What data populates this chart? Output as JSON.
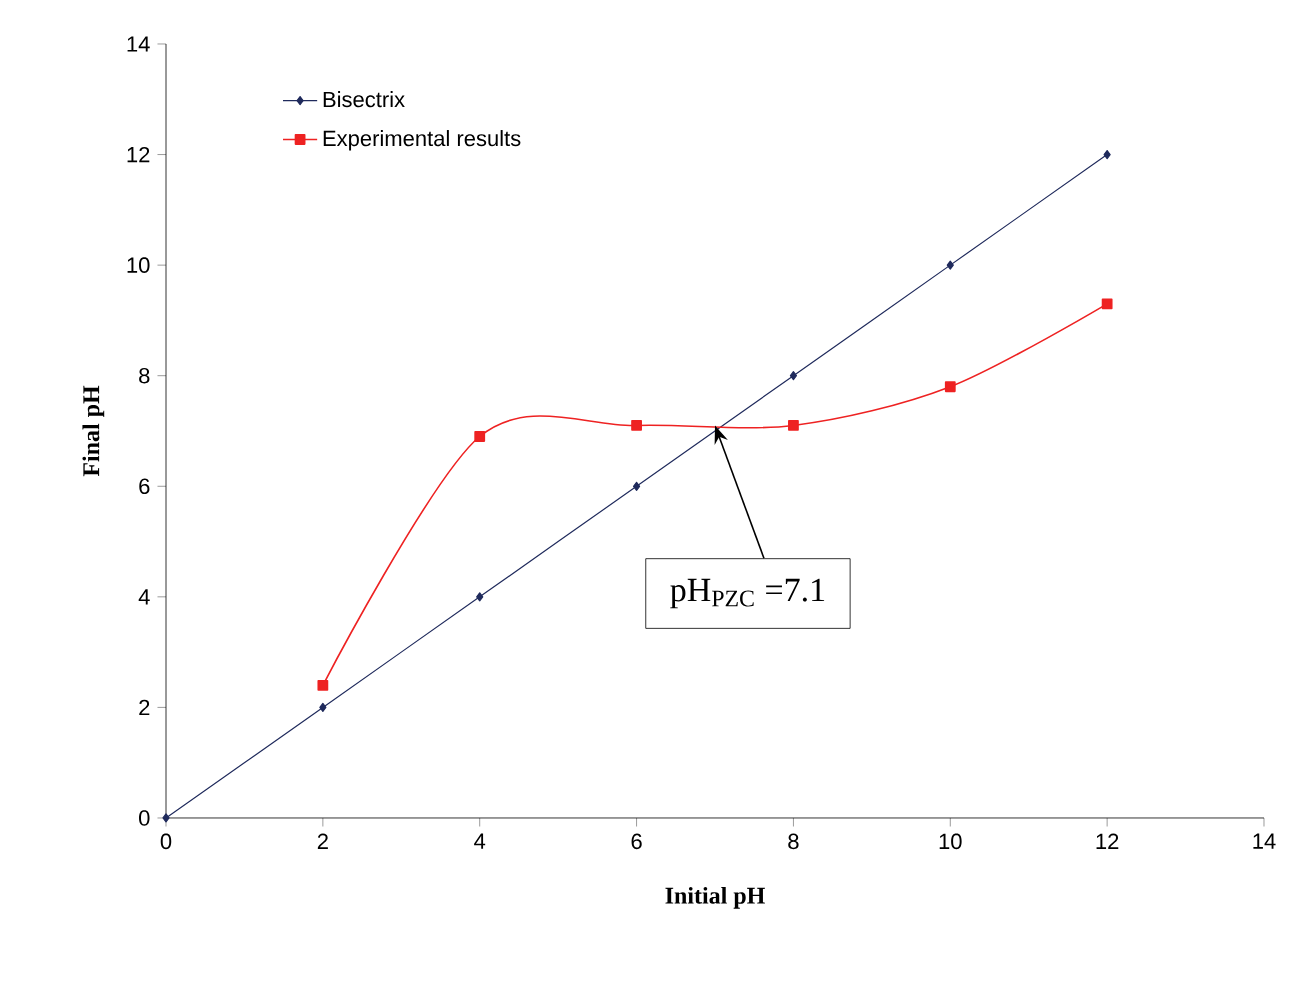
{
  "chart_data": {
    "type": "line",
    "xlabel": "Initial pH",
    "ylabel": "Final pH",
    "xlim": [
      0,
      14
    ],
    "ylim": [
      0,
      14
    ],
    "xticks": [
      0,
      2,
      4,
      6,
      8,
      10,
      12,
      14
    ],
    "yticks": [
      0,
      2,
      4,
      6,
      8,
      10,
      12,
      14
    ],
    "grid": false,
    "legend": "top left",
    "series": [
      {
        "name": "Bisectrix",
        "color": "#1f2a5c",
        "marker": "diamond",
        "x": [
          0,
          2,
          4,
          6,
          8,
          10,
          12
        ],
        "values": [
          0,
          2,
          4,
          6,
          8,
          10,
          12
        ]
      },
      {
        "name": "Experimental results",
        "color": "#ee2222",
        "marker": "square",
        "x": [
          2,
          4,
          6,
          8,
          10,
          12
        ],
        "values": [
          2.4,
          6.9,
          7.1,
          7.1,
          7.8,
          9.3
        ]
      }
    ],
    "annotations": [
      {
        "text": "pH$_{PZC}$ =7.1",
        "x": 7,
        "y": 7.1
      }
    ]
  }
}
